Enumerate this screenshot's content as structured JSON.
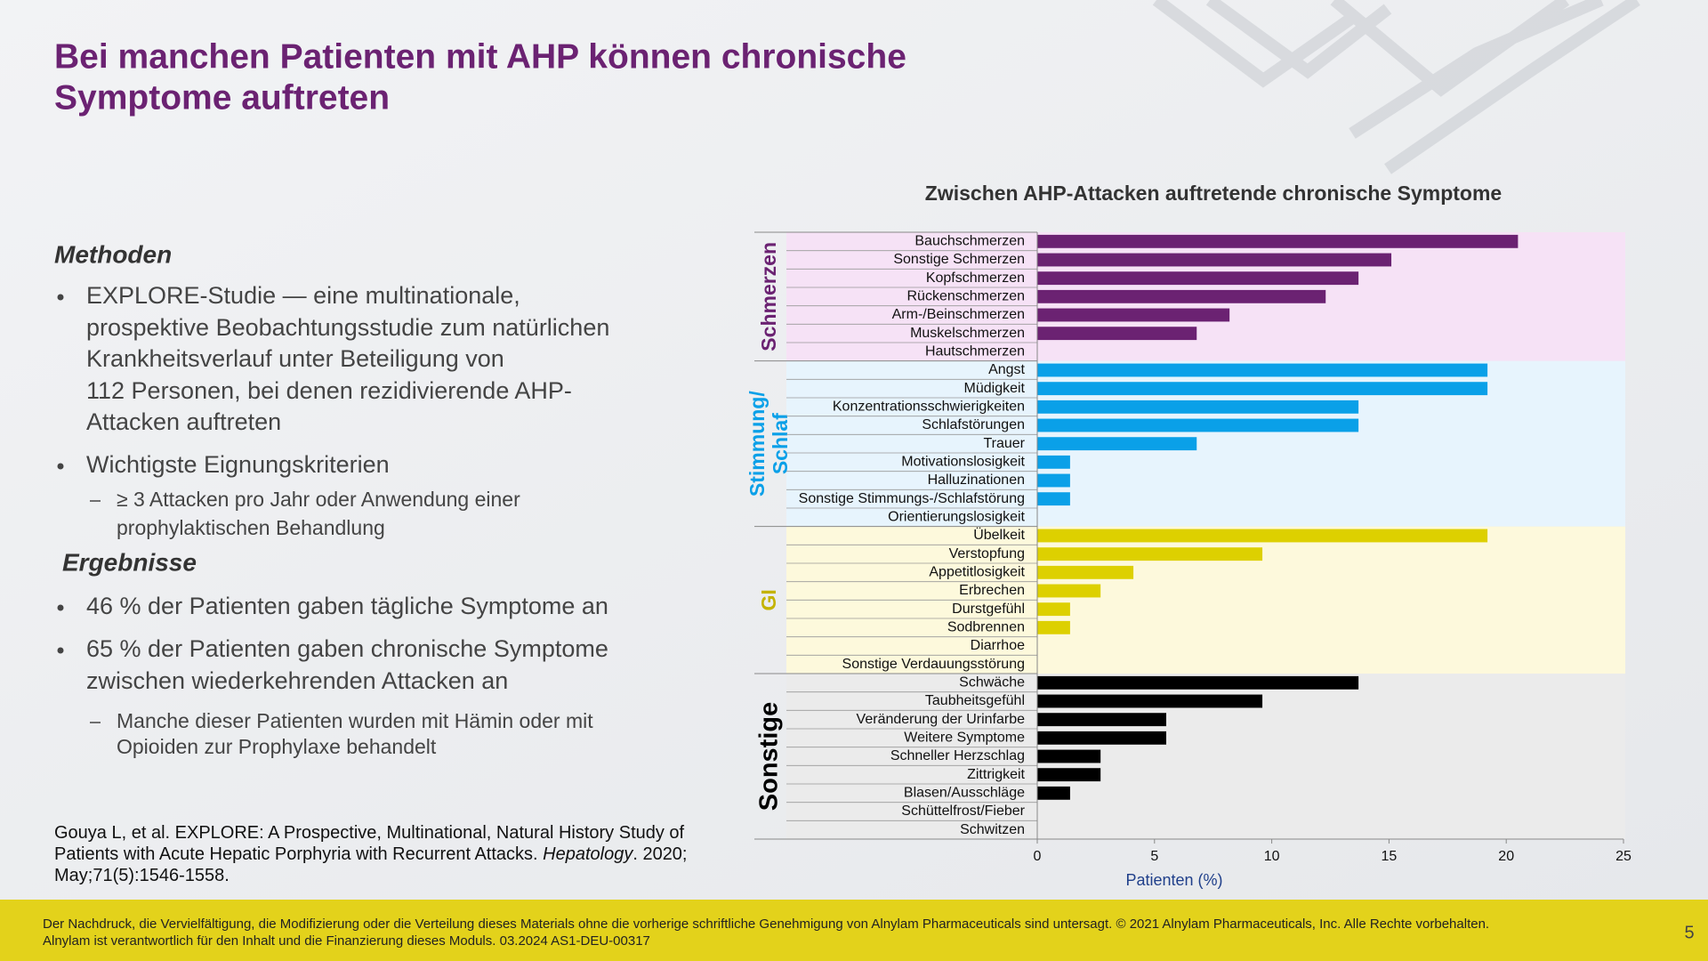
{
  "header": {
    "title_lines": [
      "Bei manchen Patienten mit AHP können chronische",
      "Symptome auftreten"
    ]
  },
  "methods": {
    "heading": "Methoden",
    "items": [
      {
        "lines": [
          "EXPLORE-Studie — eine multinationale,",
          "prospektive Beobachtungsstudie zum natürlichen",
          "Krankheitsverlauf unter Beteiligung von",
          "112 Personen, bei denen rezidivierende AHP-",
          "Attacken auftreten"
        ],
        "subitems": []
      },
      {
        "lines": [
          "Wichtigste Eignungskriterien"
        ],
        "subitems": [
          {
            "lines": [
              "≥ 3  Attacken pro Jahr oder Anwendung einer",
              "prophylaktischen Behandlung"
            ]
          }
        ]
      }
    ]
  },
  "results": {
    "heading": "Ergebnisse",
    "items": [
      {
        "lines": [
          "46 % der Patienten gaben tägliche Symptome an"
        ],
        "subitems": []
      },
      {
        "lines": [
          "65 % der Patienten gaben chronische Symptome",
          "zwischen wiederkehrenden Attacken an"
        ],
        "subitems": [
          {
            "lines": [
              "Manche dieser Patienten wurden mit Hämin oder mit",
              "Opioiden zur Prophylaxe behandelt"
            ]
          }
        ]
      }
    ]
  },
  "citation": {
    "parts": [
      "Gouya L, et al. EXPLORE: A Prospective, Multinational, Natural History Study of Patients with Acute Hepatic Porphyria with Recurrent Attacks. ",
      "Hepatology",
      ". 2020; May;71(5):1546-1558."
    ]
  },
  "footer": {
    "lines": [
      "Der Nachdruck, die Vervielfältigung, die Modifizierung oder die Verteilung dieses Materials ohne die vorherige schriftliche Genehmigung von Alnylam Pharmaceuticals sind untersagt. © 2021 Alnylam Pharmaceuticals, Inc. Alle Rechte vorbehalten.",
      "Alnylam ist verantwortlich für den Inhalt und die Finanzierung dieses Moduls. 03.2024 AS1-DEU-00317"
    ],
    "page_number": "5"
  },
  "chart_data": {
    "type": "bar",
    "orientation": "horizontal",
    "title": "Zwischen AHP-Attacken auftretende chronische Symptome",
    "xlabel": "Patienten (%)",
    "xlim": [
      0,
      25
    ],
    "xticks": [
      0,
      5,
      10,
      15,
      20,
      25
    ],
    "groups": [
      {
        "label_lines": [
          "Schmerzen"
        ],
        "color": "#6b2272",
        "background": "#f6e2f6",
        "categories": [
          "Bauchschmerzen",
          "Sonstige Schmerzen",
          "Kopfschmerzen",
          "Rückenschmerzen",
          "Arm-/Beinschmerzen",
          "Muskelschmerzen",
          "Hautschmerzen"
        ],
        "values": [
          20.5,
          15.1,
          13.7,
          12.3,
          8.2,
          6.8,
          0
        ]
      },
      {
        "label_lines": [
          "Stimmung/",
          "Schlaf"
        ],
        "color": "#0aa0e8",
        "background": "#e7f4fd",
        "categories": [
          "Angst",
          "Müdigkeit",
          "Konzentrationsschwierigkeiten",
          "Schlafstörungen",
          "Trauer",
          "Motivationslosigkeit",
          "Halluzinationen",
          "Sonstige Stimmungs-/Schlafstörung",
          "Orientierungslosigkeit"
        ],
        "values": [
          19.2,
          19.2,
          13.7,
          13.7,
          6.8,
          1.4,
          1.4,
          1.4,
          0
        ]
      },
      {
        "label_lines": [
          "GI"
        ],
        "color": "#ddd000",
        "label_color": "#c4b300",
        "background": "#fdf9dc",
        "categories": [
          "Übelkeit",
          "Verstopfung",
          "Appetitlosigkeit",
          "Erbrechen",
          "Durstgefühl",
          "Sodbrennen",
          "Diarrhoe",
          "Sonstige Verdauungsstörung"
        ],
        "values": [
          19.2,
          9.6,
          4.1,
          2.7,
          1.4,
          1.4,
          0,
          0
        ]
      },
      {
        "label_lines": [
          "Sonstige"
        ],
        "color": "#000000",
        "background": "#ebebeb",
        "categories": [
          "Schwäche",
          "Taubheitsgefühl",
          "Veränderung der Urinfarbe",
          "Weitere Symptome",
          "Schneller Herzschlag",
          "Zittrigkeit",
          "Blasen/Ausschläge",
          "Schüttelfrost/Fieber",
          "Schwitzen"
        ],
        "values": [
          13.7,
          9.6,
          5.5,
          5.5,
          2.7,
          2.7,
          1.4,
          0,
          0
        ]
      }
    ]
  }
}
